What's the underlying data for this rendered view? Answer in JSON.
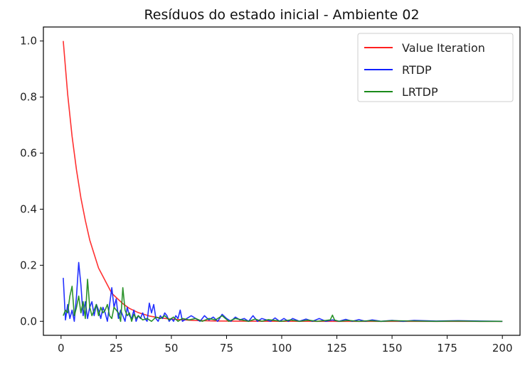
{
  "chart_data": {
    "type": "line",
    "title": "Resíduos do estado inicial - Ambiente 02",
    "xlabel": "",
    "ylabel": "",
    "xlim": [
      -8,
      208
    ],
    "ylim": [
      -0.05,
      1.05
    ],
    "xticks": [
      0,
      25,
      50,
      75,
      100,
      125,
      150,
      175,
      200
    ],
    "yticks": [
      0.0,
      0.2,
      0.4,
      0.6,
      0.8,
      1.0
    ],
    "xtick_labels": [
      "0",
      "25",
      "50",
      "75",
      "100",
      "125",
      "150",
      "175",
      "200"
    ],
    "ytick_labels": [
      "0.0",
      "0.2",
      "0.4",
      "0.6",
      "0.8",
      "1.0"
    ],
    "grid": false,
    "legend_position": "top-right",
    "series": [
      {
        "name": "Value Iteration",
        "color": "#ff2020",
        "x": [
          1,
          3,
          5,
          7,
          9,
          11,
          13,
          15,
          17,
          19,
          21,
          23,
          25,
          28,
          31,
          35,
          40,
          45,
          50,
          60,
          70,
          80,
          100,
          125,
          150,
          175,
          200
        ],
        "y": [
          1.0,
          0.81,
          0.66,
          0.54,
          0.44,
          0.36,
          0.29,
          0.24,
          0.19,
          0.16,
          0.13,
          0.1,
          0.085,
          0.063,
          0.046,
          0.031,
          0.019,
          0.012,
          0.008,
          0.003,
          0.0012,
          0.0005,
          0.0001,
          0.0,
          0.0,
          0.0,
          0.0
        ]
      },
      {
        "name": "RTDP",
        "color": "#1020ff",
        "x": [
          1,
          2,
          3,
          4,
          5,
          6,
          7,
          8,
          9,
          10,
          11,
          12,
          13,
          14,
          15,
          16,
          17,
          18,
          19,
          20,
          21,
          22,
          23,
          24,
          25,
          26,
          27,
          28,
          29,
          30,
          31,
          32,
          33,
          34,
          35,
          36,
          37,
          38,
          39,
          40,
          41,
          42,
          43,
          44,
          45,
          46,
          47,
          48,
          49,
          50,
          51,
          52,
          53,
          54,
          55,
          57,
          59,
          61,
          63,
          65,
          67,
          69,
          71,
          73,
          75,
          77,
          79,
          81,
          83,
          85,
          87,
          89,
          91,
          93,
          95,
          97,
          99,
          101,
          103,
          105,
          108,
          111,
          114,
          117,
          120,
          123,
          126,
          129,
          132,
          135,
          138,
          141,
          145,
          150,
          155,
          160,
          170,
          180,
          190,
          200
        ],
        "y": [
          0.155,
          0.005,
          0.06,
          0.01,
          0.04,
          0.0,
          0.09,
          0.21,
          0.13,
          0.02,
          0.07,
          0.01,
          0.05,
          0.07,
          0.02,
          0.06,
          0.04,
          0.01,
          0.05,
          0.03,
          0.0,
          0.06,
          0.12,
          0.05,
          0.08,
          0.01,
          0.04,
          0.02,
          0.0,
          0.05,
          0.02,
          0.01,
          0.04,
          0.0,
          0.02,
          0.01,
          0.03,
          0.01,
          0.0,
          0.065,
          0.03,
          0.06,
          0.01,
          0.0,
          0.02,
          0.01,
          0.03,
          0.02,
          0.0,
          0.01,
          0.0,
          0.02,
          0.01,
          0.04,
          0.0,
          0.01,
          0.02,
          0.01,
          0.0,
          0.02,
          0.005,
          0.015,
          0.0,
          0.025,
          0.01,
          0.0,
          0.015,
          0.005,
          0.01,
          0.0,
          0.02,
          0.0,
          0.01,
          0.005,
          0.0,
          0.012,
          0.0,
          0.01,
          0.0,
          0.01,
          0.0,
          0.008,
          0.0,
          0.01,
          0.0,
          0.005,
          0.0,
          0.007,
          0.0,
          0.006,
          0.0,
          0.005,
          0.0,
          0.003,
          0.0,
          0.003,
          0.001,
          0.002,
          0.001,
          0.0
        ]
      },
      {
        "name": "LRTDP",
        "color": "#1a8a1a",
        "x": [
          1,
          2,
          3,
          4,
          5,
          6,
          7,
          8,
          9,
          10,
          11,
          12,
          13,
          14,
          15,
          16,
          17,
          18,
          19,
          20,
          21,
          22,
          23,
          24,
          25,
          26,
          27,
          28,
          29,
          30,
          31,
          32,
          33,
          34,
          35,
          37,
          39,
          41,
          43,
          45,
          47,
          49,
          51,
          53,
          55,
          58,
          61,
          64,
          67,
          70,
          73,
          76,
          79,
          82,
          85,
          88,
          91,
          94,
          97,
          100,
          104,
          108,
          112,
          116,
          120,
          122,
          123,
          124,
          126,
          130,
          135,
          140,
          145,
          150,
          160,
          170,
          180,
          190,
          200
        ],
        "y": [
          0.02,
          0.04,
          0.03,
          0.09,
          0.125,
          0.02,
          0.05,
          0.09,
          0.03,
          0.07,
          0.01,
          0.15,
          0.05,
          0.02,
          0.04,
          0.06,
          0.02,
          0.05,
          0.03,
          0.04,
          0.06,
          0.02,
          0.01,
          0.05,
          0.04,
          0.03,
          0.0,
          0.12,
          0.04,
          0.02,
          0.03,
          0.0,
          0.025,
          0.01,
          0.02,
          0.005,
          0.01,
          0.0,
          0.015,
          0.01,
          0.02,
          0.005,
          0.015,
          0.0,
          0.01,
          0.005,
          0.01,
          0.0,
          0.01,
          0.005,
          0.02,
          0.0,
          0.01,
          0.005,
          0.0,
          0.008,
          0.0,
          0.006,
          0.003,
          0.0,
          0.005,
          0.0,
          0.004,
          0.0,
          0.003,
          0.005,
          0.022,
          0.004,
          0.0,
          0.003,
          0.0,
          0.002,
          0.0,
          0.002,
          0.001,
          0.0,
          0.001,
          0.0,
          0.0
        ]
      }
    ]
  }
}
